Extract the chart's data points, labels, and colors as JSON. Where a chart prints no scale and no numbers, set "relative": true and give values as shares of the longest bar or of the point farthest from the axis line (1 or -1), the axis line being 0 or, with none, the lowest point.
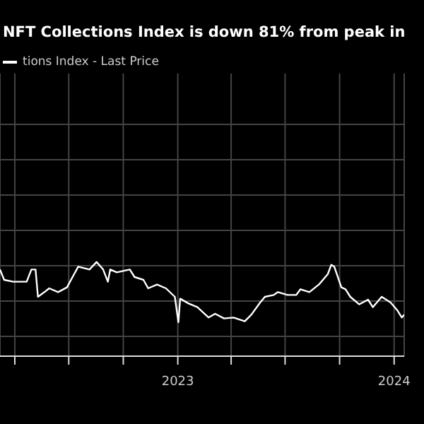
{
  "chart_data": {
    "type": "line",
    "title": "NFT Collections Index is down 81% from peak in",
    "relative": true,
    "grid": true,
    "legend": "top left",
    "tick_labels": "x",
    "x": [
      "2022-03-07",
      "2022-03-14",
      "2022-03-29",
      "2022-04-21",
      "2022-04-29",
      "2022-05-06",
      "2022-05-10",
      "2022-05-21",
      "2022-05-29",
      "2022-06-13",
      "2022-06-28",
      "2022-07-10",
      "2022-07-17",
      "2022-08-05",
      "2022-08-17",
      "2022-08-28",
      "2022-09-05",
      "2022-09-09",
      "2022-09-20",
      "2022-10-12",
      "2022-10-20",
      "2022-11-04",
      "2022-11-12",
      "2022-11-27",
      "2022-12-12",
      "2022-12-27",
      "2023-01-02",
      "2023-01-05",
      "2023-01-19",
      "2023-02-03",
      "2023-02-22",
      "2023-03-05",
      "2023-03-20",
      "2023-04-05",
      "2023-04-24",
      "2023-05-05",
      "2023-05-20",
      "2023-05-28",
      "2023-06-12",
      "2023-06-19",
      "2023-07-05",
      "2023-07-20",
      "2023-07-27",
      "2023-08-11",
      "2023-08-27",
      "2023-09-11",
      "2023-09-17",
      "2023-09-22",
      "2023-10-04",
      "2023-10-11",
      "2023-10-19",
      "2023-11-03",
      "2023-11-18",
      "2023-11-26",
      "2023-12-11",
      "2023-12-26",
      "2024-01-06",
      "2024-01-14",
      "2024-01-18"
    ],
    "xlim": [
      "2022-03-07",
      "2024-01-18"
    ],
    "xticks": [
      {
        "value": "2022-04-01",
        "label": null
      },
      {
        "value": "2022-07-01",
        "label": null
      },
      {
        "value": "2022-10-01",
        "label": null
      },
      {
        "value": "2023-01-01",
        "label": "2023"
      },
      {
        "value": "2023-04-01",
        "label": null
      },
      {
        "value": "2023-07-01",
        "label": null
      },
      {
        "value": "2023-10-01",
        "label": null
      },
      {
        "value": "2024-01-01",
        "label": "2024"
      }
    ],
    "series": [
      {
        "name": "tions Index - Last Price",
        "color": "#ffffff",
        "values": [
          0.92,
          0.81,
          0.79,
          0.79,
          0.92,
          0.92,
          0.63,
          0.68,
          0.72,
          0.68,
          0.73,
          0.87,
          0.95,
          0.92,
          1,
          0.92,
          0.79,
          0.92,
          0.89,
          0.92,
          0.84,
          0.81,
          0.72,
          0.76,
          0.72,
          0.63,
          0.36,
          0.61,
          0.56,
          0.52,
          0.41,
          0.45,
          0.4,
          0.41,
          0.37,
          0.44,
          0.57,
          0.63,
          0.65,
          0.68,
          0.65,
          0.65,
          0.71,
          0.68,
          0.76,
          0.87,
          0.97,
          0.95,
          0.73,
          0.71,
          0.63,
          0.55,
          0.6,
          0.52,
          0.63,
          0.57,
          0.49,
          0.41,
          0.44
        ]
      }
    ]
  }
}
